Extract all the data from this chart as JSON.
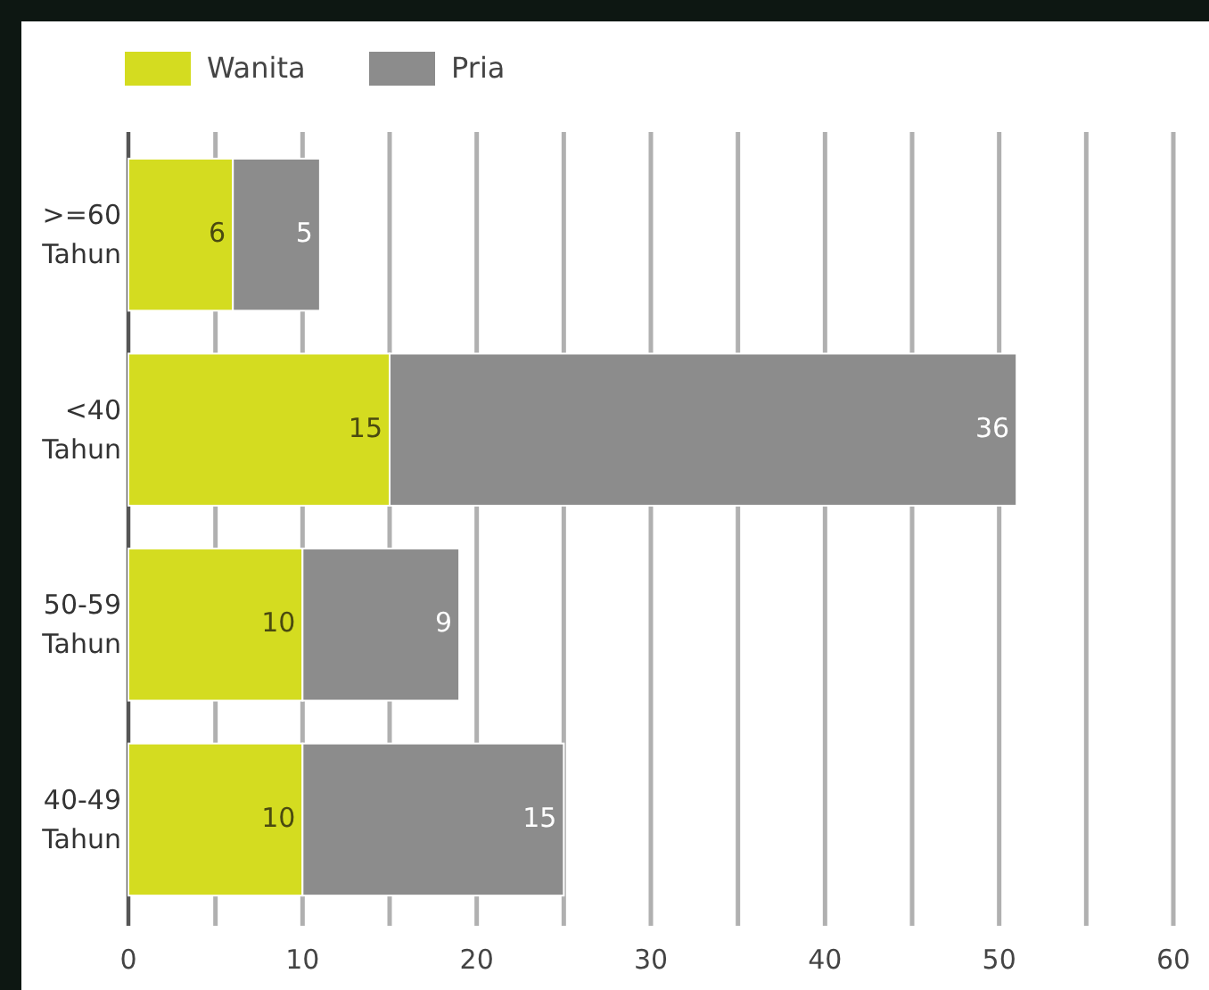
{
  "chart_data": {
    "type": "bar",
    "orientation": "horizontal",
    "stacked": true,
    "categories": [
      ">=60\nTahun",
      "<40\nTahun",
      "50-59\nTahun",
      "40-49\nTahun"
    ],
    "series": [
      {
        "name": "Wanita",
        "color": "#d4dc20",
        "values": [
          6,
          15,
          10,
          10
        ]
      },
      {
        "name": "Pria",
        "color": "#8c8c8c",
        "values": [
          5,
          36,
          9,
          15
        ]
      }
    ],
    "xlim": [
      0,
      60
    ],
    "xticks": [
      0,
      {
        "value": 5,
        "label": null
      },
      10,
      {
        "value": 15,
        "label": null
      },
      20,
      {
        "value": 25,
        "label": null
      },
      30,
      {
        "value": 35,
        "label": null
      },
      40,
      {
        "value": 45,
        "label": null
      },
      50,
      {
        "value": 55,
        "label": null
      },
      60
    ],
    "grid": "x",
    "legend": "top left",
    "data_labels": true
  }
}
